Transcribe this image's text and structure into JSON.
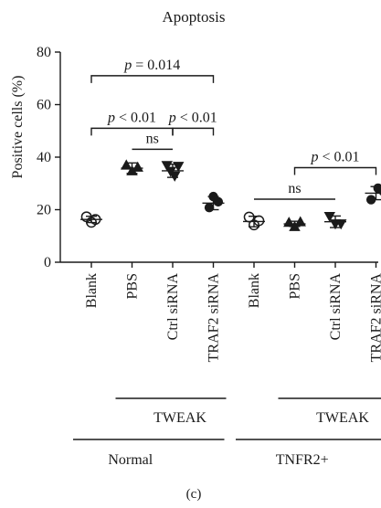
{
  "chart_data": {
    "type": "scatter",
    "title": "Apoptosis",
    "ylabel": "Positive cells (%)",
    "xlabel": "",
    "ylim": [
      0,
      80
    ],
    "yticks": [
      0,
      20,
      40,
      60,
      80
    ],
    "categories": [
      "Blank",
      "PBS",
      "Ctrl siRNA",
      "TRAF2 siRNA",
      "Blank",
      "PBS",
      "Ctrl siRNA",
      "TRAF2 siRNA"
    ],
    "groups": [
      {
        "marker": "open-circle",
        "mean": 16.3,
        "err": 1.2,
        "points": [
          {
            "dx": -0.12,
            "y": 17.3
          },
          {
            "dx": 0.1,
            "y": 16.3
          },
          {
            "dx": 0.0,
            "y": 15.2
          }
        ]
      },
      {
        "marker": "filled-triangle-up",
        "mean": 35.8,
        "err": 2.0,
        "points": [
          {
            "dx": -0.14,
            "y": 37.0
          },
          {
            "dx": 0.14,
            "y": 36.2
          },
          {
            "dx": 0.0,
            "y": 34.8
          }
        ]
      },
      {
        "marker": "filled-triangle-down",
        "mean": 34.8,
        "err": 2.5,
        "points": [
          {
            "dx": -0.14,
            "y": 36.8
          },
          {
            "dx": 0.14,
            "y": 36.5
          },
          {
            "dx": -0.05,
            "y": 34.6
          },
          {
            "dx": 0.05,
            "y": 32.8
          }
        ]
      },
      {
        "marker": "filled-circle",
        "mean": 22.5,
        "err": 2.5,
        "points": [
          {
            "dx": 0.0,
            "y": 25.0
          },
          {
            "dx": 0.12,
            "y": 23.0
          },
          {
            "dx": -0.1,
            "y": 20.8
          }
        ]
      },
      {
        "marker": "open-circle",
        "mean": 15.5,
        "err": 2.0,
        "points": [
          {
            "dx": -0.12,
            "y": 17.2
          },
          {
            "dx": 0.12,
            "y": 15.8
          },
          {
            "dx": 0.0,
            "y": 14.2
          }
        ]
      },
      {
        "marker": "filled-triangle-up",
        "mean": 14.6,
        "err": 1.0,
        "points": [
          {
            "dx": -0.14,
            "y": 15.2
          },
          {
            "dx": 0.14,
            "y": 15.4
          },
          {
            "dx": 0.0,
            "y": 13.6
          }
        ]
      },
      {
        "marker": "filled-triangle-down",
        "mean": 15.4,
        "err": 2.2,
        "points": [
          {
            "dx": -0.14,
            "y": 17.4
          },
          {
            "dx": 0.14,
            "y": 14.6
          },
          {
            "dx": 0.0,
            "y": 14.6
          }
        ]
      },
      {
        "marker": "filled-circle",
        "mean": 26.3,
        "err": 2.5,
        "points": [
          {
            "dx": 0.05,
            "y": 28.2
          },
          {
            "dx": 0.18,
            "y": 27.0
          },
          {
            "dx": -0.12,
            "y": 23.8
          }
        ]
      }
    ],
    "comparisons": [
      {
        "from": 0,
        "to": 3,
        "y": 71,
        "label": "p = 0.014"
      },
      {
        "from": 0,
        "to": 2,
        "y": 51,
        "label": "p < 0.01"
      },
      {
        "from": 2,
        "to": 3,
        "y": 51,
        "label": "p < 0.01"
      },
      {
        "from": 1,
        "to": 2,
        "y": 43,
        "label": "ns"
      },
      {
        "from": 4,
        "to": 6,
        "y": 24,
        "label": "ns"
      },
      {
        "from": 5,
        "to": 7,
        "y": 36,
        "label": "p < 0.01"
      }
    ],
    "treatment_groups": [
      {
        "label": "TWEAK",
        "from": 1,
        "to": 3
      },
      {
        "label": "TWEAK",
        "from": 5,
        "to": 7
      }
    ],
    "condition_groups": [
      {
        "label": "Normal",
        "from": 0,
        "to": 3
      },
      {
        "label": "TNFR2+",
        "from": 4,
        "to": 7
      }
    ],
    "panel_label": "(c)"
  }
}
